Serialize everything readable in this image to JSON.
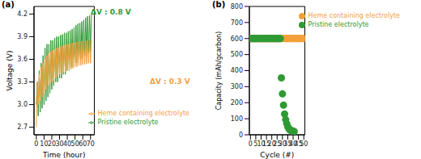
{
  "chart_data": [
    {
      "type": "line",
      "title": "(a)",
      "x_label": "Time (hour)",
      "y_label": "Voltage (V)",
      "x": [
        0,
        1.25,
        2.5,
        3.75,
        5,
        6.25,
        7.5,
        8.75,
        10,
        11.25,
        12.5,
        13.75,
        15,
        16.25,
        17.5,
        18.75,
        20,
        21.25,
        22.5,
        23.75,
        25,
        26.25,
        27.5,
        28.75,
        30,
        31.25,
        32.5,
        33.75,
        35,
        36.25,
        37.5,
        38.75,
        40,
        41.25,
        42.5,
        43.75,
        45,
        46.25,
        47.5,
        48.75,
        50,
        51.25,
        52.5,
        53.75,
        55,
        56.25,
        57.5,
        58.75,
        60,
        61.25,
        62.5,
        63.75,
        65,
        66.25,
        67.5,
        68.75,
        70,
        71.25
      ],
      "series": [
        {
          "name": "Pristine electrolyte",
          "color": "#2f9a34",
          "values": [
            3.0,
            3.3,
            2.85,
            3.45,
            2.9,
            3.55,
            2.95,
            3.65,
            3.0,
            3.75,
            3.05,
            3.8,
            3.1,
            3.8,
            3.15,
            3.85,
            3.2,
            3.85,
            3.25,
            3.88,
            3.3,
            3.9,
            3.3,
            3.9,
            3.35,
            3.92,
            3.35,
            3.93,
            3.4,
            3.95,
            3.4,
            3.95,
            3.45,
            3.97,
            3.45,
            3.98,
            3.5,
            4.0,
            3.5,
            4.02,
            3.55,
            4.05,
            3.55,
            4.07,
            3.6,
            4.08,
            3.6,
            4.1,
            3.62,
            4.12,
            3.65,
            4.15,
            3.65,
            4.17,
            3.68,
            4.18,
            3.7,
            4.2
          ]
        },
        {
          "name": "Heme containing electrolyte",
          "color": "#f5a03a",
          "values": [
            2.7,
            3.3,
            3.0,
            3.4,
            3.05,
            3.5,
            3.1,
            3.55,
            3.15,
            3.6,
            3.2,
            3.65,
            3.25,
            3.68,
            3.28,
            3.7,
            3.3,
            3.72,
            3.32,
            3.73,
            3.35,
            3.75,
            3.37,
            3.75,
            3.4,
            3.77,
            3.4,
            3.78,
            3.42,
            3.78,
            3.43,
            3.8,
            3.45,
            3.8,
            3.45,
            3.8,
            3.47,
            3.82,
            3.48,
            3.82,
            3.5,
            3.83,
            3.5,
            3.83,
            3.52,
            3.84,
            3.52,
            3.84,
            3.53,
            3.85,
            3.53,
            3.85,
            3.54,
            3.85,
            3.55,
            3.86,
            3.55,
            3.86
          ]
        }
      ],
      "annotations": [
        {
          "text": "ΔV : 0.8 V",
          "color": "#2f9a34"
        },
        {
          "text": "ΔV : 0.3 V",
          "color": "#f5a03a"
        }
      ],
      "xlim": [
        -3,
        75
      ],
      "xticks": [
        0,
        10,
        20,
        30,
        40,
        50,
        60,
        70
      ],
      "ylim": [
        2.6,
        4.3
      ],
      "yticks": [
        2.7,
        {
          "value": 3,
          "label": "3.0"
        },
        3.3,
        3.6,
        3.9,
        4.2
      ],
      "grid": false,
      "legend": "lower right"
    },
    {
      "type": "scatter",
      "title": "(b)",
      "x_label": "Cycle (#)",
      "y_label": "Capacity (mAh/gcarbon)",
      "series": [
        {
          "name": "Heme containing electrolyte",
          "color": "#f5a03a",
          "marker": "circle",
          "x": [
            1,
            2,
            3,
            4,
            5,
            6,
            7,
            8,
            9,
            10,
            11,
            12,
            13,
            14,
            15,
            16,
            17,
            18,
            19,
            20,
            21,
            22,
            23,
            24,
            25,
            26,
            27,
            28,
            29,
            30,
            31,
            32,
            33,
            34,
            35,
            36,
            37,
            38,
            39,
            40,
            41,
            42,
            43,
            44,
            45,
            46,
            47,
            48,
            49,
            50
          ],
          "values": [
            600,
            600,
            600,
            600,
            600,
            600,
            600,
            600,
            600,
            600,
            600,
            600,
            600,
            600,
            600,
            600,
            600,
            600,
            600,
            600,
            600,
            600,
            600,
            600,
            600,
            600,
            600,
            600,
            600,
            600,
            600,
            600,
            600,
            600,
            600,
            600,
            600,
            600,
            600,
            600,
            600,
            600,
            600,
            600,
            600,
            600,
            600,
            600,
            600,
            600
          ]
        },
        {
          "name": "Pristine electrolyte",
          "color": "#2f9a34",
          "marker": "circle",
          "x": [
            1,
            2,
            3,
            4,
            5,
            6,
            7,
            8,
            9,
            10,
            11,
            12,
            13,
            14,
            15,
            16,
            17,
            18,
            19,
            20,
            21,
            22,
            23,
            24,
            25,
            26,
            27,
            28,
            29,
            30,
            31,
            32,
            33,
            34,
            35,
            36,
            37,
            38,
            39,
            40,
            41
          ],
          "values": [
            600,
            600,
            600,
            600,
            600,
            600,
            600,
            600,
            600,
            600,
            600,
            600,
            600,
            600,
            600,
            600,
            600,
            600,
            600,
            600,
            600,
            600,
            600,
            600,
            600,
            600,
            600,
            600,
            355,
            255,
            185,
            130,
            95,
            70,
            50,
            38,
            30,
            27,
            25,
            22,
            20
          ]
        }
      ],
      "xlim": [
        -1,
        51
      ],
      "xticks": [
        0,
        5,
        10,
        15,
        20,
        25,
        30,
        35,
        40,
        45,
        50
      ],
      "ylim": [
        0,
        800
      ],
      "yticks": [
        0,
        100,
        200,
        300,
        400,
        500,
        600,
        700,
        800
      ],
      "grid": false,
      "legend": "upper right"
    }
  ]
}
